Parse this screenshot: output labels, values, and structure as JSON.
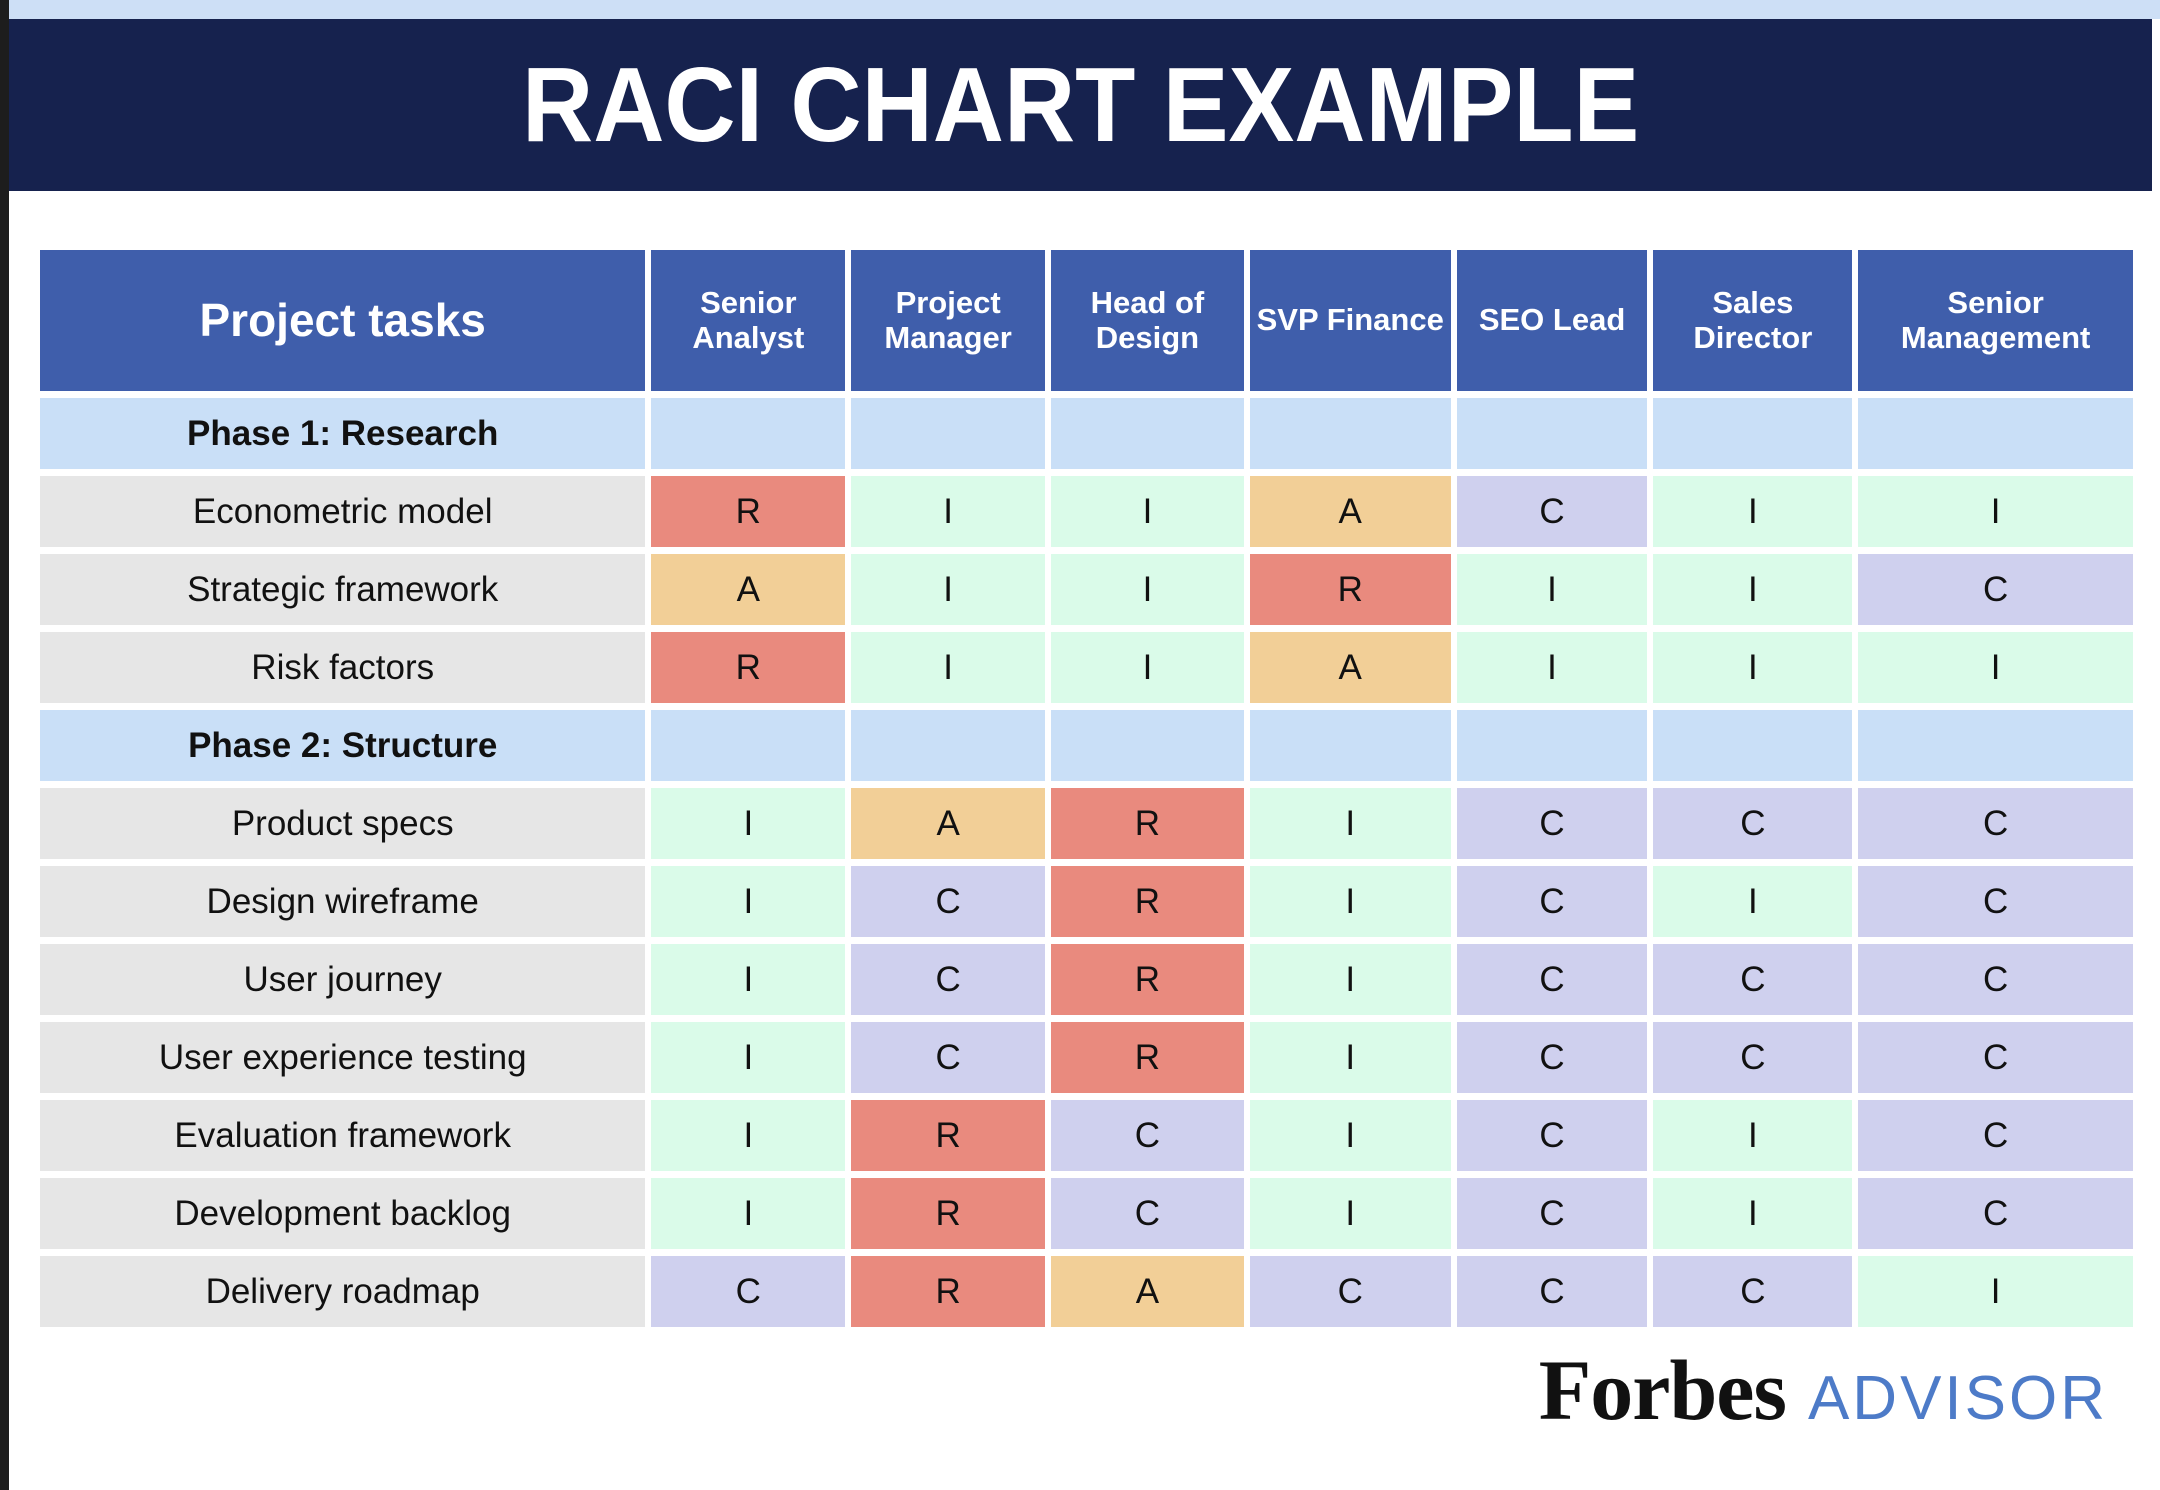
{
  "page": {
    "title": "RACI CHART EXAMPLE"
  },
  "colors": {
    "top_strip": "#cddff6",
    "title_band": "#16224e",
    "header_cell": "#3f5eab",
    "phase_row": "#c9dff7",
    "task_label": "#e6e6e6",
    "raci": {
      "R": "#e98a7e",
      "A": "#f2cf97",
      "C": "#cfd0ee",
      "I": "#dafbe9"
    },
    "brand_text": "#111111",
    "brand_suffix_text": "#4d7bc8"
  },
  "chart_data": {
    "type": "table",
    "title": "RACI CHART EXAMPLE",
    "task_header": "Project tasks",
    "columns": [
      "Senior Analyst",
      "Project Manager",
      "Head of Design",
      "SVP Finance",
      "SEO Lead",
      "Sales Director",
      "Senior Management"
    ],
    "rows": [
      {
        "type": "phase",
        "label": "Phase 1: Research",
        "cells": [
          "",
          "",
          "",
          "",
          "",
          "",
          ""
        ]
      },
      {
        "type": "task",
        "label": "Econometric model",
        "cells": [
          "R",
          "I",
          "I",
          "A",
          "C",
          "I",
          "I"
        ]
      },
      {
        "type": "task",
        "label": "Strategic framework",
        "cells": [
          "A",
          "I",
          "I",
          "R",
          "I",
          "I",
          "C"
        ]
      },
      {
        "type": "task",
        "label": "Risk factors",
        "cells": [
          "R",
          "I",
          "I",
          "A",
          "I",
          "I",
          "I"
        ]
      },
      {
        "type": "phase",
        "label": "Phase 2: Structure",
        "cells": [
          "",
          "",
          "",
          "",
          "",
          "",
          ""
        ]
      },
      {
        "type": "task",
        "label": "Product specs",
        "cells": [
          "I",
          "A",
          "R",
          "I",
          "C",
          "C",
          "C"
        ]
      },
      {
        "type": "task",
        "label": "Design wireframe",
        "cells": [
          "I",
          "C",
          "R",
          "I",
          "C",
          "I",
          "C"
        ]
      },
      {
        "type": "task",
        "label": "User journey",
        "cells": [
          "I",
          "C",
          "R",
          "I",
          "C",
          "C",
          "C"
        ]
      },
      {
        "type": "task",
        "label": "User experience testing",
        "cells": [
          "I",
          "C",
          "R",
          "I",
          "C",
          "C",
          "C"
        ]
      },
      {
        "type": "task",
        "label": "Evaluation framework",
        "cells": [
          "I",
          "R",
          "C",
          "I",
          "C",
          "I",
          "C"
        ]
      },
      {
        "type": "task",
        "label": "Development backlog",
        "cells": [
          "I",
          "R",
          "C",
          "I",
          "C",
          "I",
          "C"
        ]
      },
      {
        "type": "task",
        "label": "Delivery roadmap",
        "cells": [
          "C",
          "R",
          "A",
          "C",
          "C",
          "C",
          "I"
        ]
      }
    ]
  },
  "footer": {
    "brand": "Forbes",
    "brand_suffix": "ADVISOR"
  }
}
